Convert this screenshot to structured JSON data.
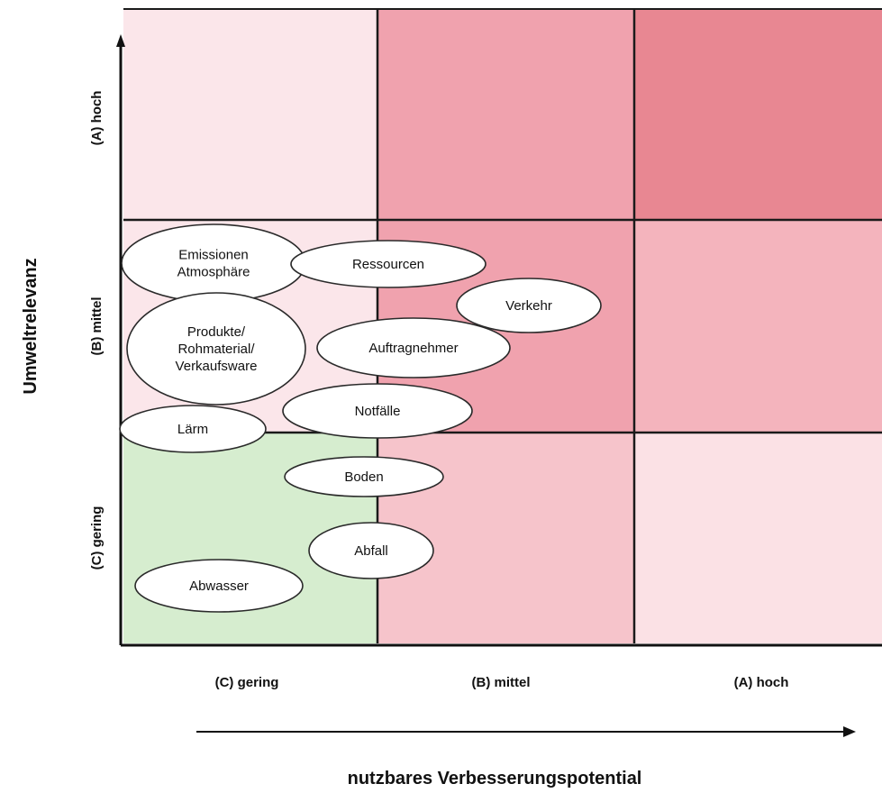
{
  "chart_data": {
    "type": "matrix",
    "x_axis": {
      "title": "nutzbares Verbesserungspotential",
      "categories": [
        "(C) gering",
        "(B) mittel",
        "(A) hoch"
      ]
    },
    "y_axis": {
      "title": "Umweltrelevanz",
      "categories": [
        "(C) gering",
        "(B) mittel",
        "(A) hoch"
      ]
    },
    "cells": [
      {
        "x": "(C) gering",
        "y": "(A) hoch",
        "color": "#fbe6ea"
      },
      {
        "x": "(B) mittel",
        "y": "(A) hoch",
        "color": "#f0a2ae"
      },
      {
        "x": "(A) hoch",
        "y": "(A) hoch",
        "color": "#e88792"
      },
      {
        "x": "(C) gering",
        "y": "(B) mittel",
        "color": "#fbe6ea"
      },
      {
        "x": "(B) mittel",
        "y": "(B) mittel",
        "color": "#f0a2ae"
      },
      {
        "x": "(A) hoch",
        "y": "(B) mittel",
        "color": "#f4b4bd"
      },
      {
        "x": "(C) gering",
        "y": "(C) gering",
        "color": "#d6edcf"
      },
      {
        "x": "(B) mittel",
        "y": "(C) gering",
        "color": "#f6c4cb"
      },
      {
        "x": "(A) hoch",
        "y": "(C) gering",
        "color": "#fbe1e5"
      }
    ],
    "items": [
      {
        "label": [
          "Emissionen",
          "Atmosphäre"
        ]
      },
      {
        "label": [
          "Ressourcen"
        ]
      },
      {
        "label": [
          "Verkehr"
        ]
      },
      {
        "label": [
          "Produkte/",
          "Rohmaterial/",
          "Verkaufsware"
        ]
      },
      {
        "label": [
          "Auftragnehmer"
        ]
      },
      {
        "label": [
          "Notfälle"
        ]
      },
      {
        "label": [
          "Lärm"
        ]
      },
      {
        "label": [
          "Boden"
        ]
      },
      {
        "label": [
          "Abfall"
        ]
      },
      {
        "label": [
          "Abwasser"
        ]
      }
    ]
  },
  "colors": {
    "grid_line": "#1a1a1a",
    "bubble_fill": "#ffffff",
    "bubble_stroke": "#2a2a2a"
  }
}
